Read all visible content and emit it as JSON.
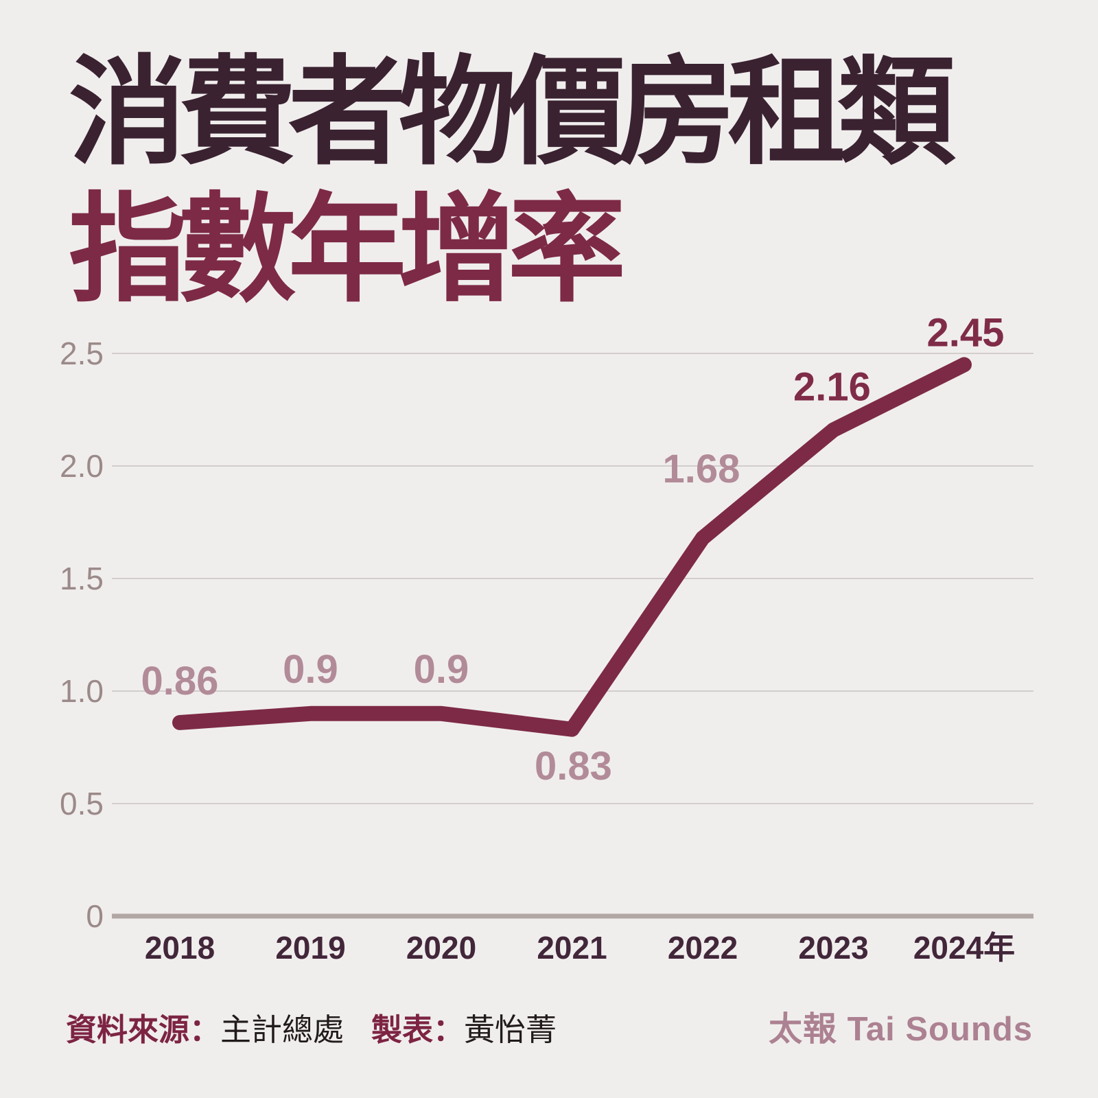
{
  "page": {
    "background": "#f0eeed"
  },
  "title": {
    "line1": "消費者物價房租類",
    "line2": "指數年增率",
    "line1_color": "#3a2231",
    "line2_color": "#7d2a46"
  },
  "chart_data": {
    "type": "line",
    "title": "消費者物價房租類指數年增率",
    "categories": [
      "2018",
      "2019",
      "2020",
      "2021",
      "2022",
      "2023",
      "2024年"
    ],
    "values": [
      0.86,
      0.9,
      0.9,
      0.83,
      1.68,
      2.16,
      2.45
    ],
    "value_labels": [
      "0.86",
      "0.9",
      "0.9",
      "0.83",
      "1.68",
      "2.16",
      "2.45"
    ],
    "label_emphasis": [
      false,
      false,
      false,
      false,
      false,
      true,
      true
    ],
    "ylim": [
      0,
      2.5
    ],
    "y_ticks": [
      {
        "value": 0,
        "label": "0"
      },
      {
        "value": 0.5,
        "label": "0.5"
      },
      {
        "value": 1,
        "label": "1.0"
      },
      {
        "value": 1.5,
        "label": "1.5"
      },
      {
        "value": 2,
        "label": "2.0"
      },
      {
        "value": 2.5,
        "label": "2.5"
      }
    ],
    "grid": "horizontal",
    "legend": "none",
    "line_color": "#7d2a46",
    "value_label_color_light": "#b28b98",
    "value_label_color_dark": "#7f2c48",
    "grid_color": "#d2cdcc",
    "axis_color": "#b1a7a4",
    "y_tick_color": "#9b8a89",
    "x_tick_color": "#422639"
  },
  "footer": {
    "source_label": "資料來源：",
    "source_value": "主計總處",
    "maker_label": "製表：",
    "maker_value": "黃怡菁",
    "label_color": "#7d2443",
    "value_color": "#211b1b",
    "brand": "太報 Tai Sounds",
    "brand_color": "#ac8191"
  }
}
